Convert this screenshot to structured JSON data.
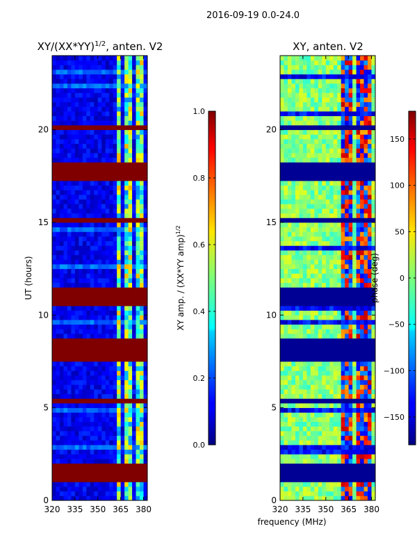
{
  "figure_title": "2016-09-19 0.0-24.0",
  "chart_data": [
    {
      "type": "heatmap",
      "title": "XY/(XX*YY)",
      "title_exponent": "1/2",
      "title_suffix": ", anten. V2",
      "xlabel": "",
      "ylabel": "UT (hours)",
      "xlim": [
        320,
        382.5
      ],
      "ylim": [
        0,
        24
      ],
      "x_ticks": [
        320,
        335,
        350,
        365,
        380
      ],
      "y_ticks": [
        0,
        5,
        10,
        15,
        20
      ],
      "colormap": "jet",
      "colorbar": {
        "label": "XY amp. / (XX*YY amp)",
        "label_exponent": "1/2",
        "range": [
          0.0,
          1.0
        ],
        "ticks": [
          0.0,
          0.2,
          0.4,
          0.6,
          0.8,
          1.0
        ],
        "tick_labels": [
          "0.0",
          "0.2",
          "0.4",
          "0.6",
          "0.8",
          "1.0"
        ]
      },
      "flagged_value": 1.0,
      "flagged_time_ranges": [
        [
          0.0,
          0.1
        ],
        [
          1.0,
          2.0
        ],
        [
          5.2,
          5.5
        ],
        [
          7.6,
          8.8
        ],
        [
          10.6,
          11.6
        ],
        [
          14.9,
          15.3
        ],
        [
          17.3,
          18.3
        ],
        [
          20.1,
          20.3
        ]
      ],
      "background_value": 0.05,
      "bright_channel_ranges_mhz": [
        [
          363,
          366
        ],
        [
          367,
          370
        ],
        [
          371,
          373
        ],
        [
          374,
          377
        ],
        [
          378,
          381
        ]
      ]
    },
    {
      "type": "heatmap",
      "title": "XY, anten. V2",
      "xlabel": "frequency (MHz)",
      "ylabel": "",
      "xlim": [
        320,
        382.5
      ],
      "ylim": [
        0,
        24
      ],
      "x_ticks": [
        320,
        335,
        350,
        365,
        380
      ],
      "y_ticks": [
        0,
        5,
        10,
        15,
        20
      ],
      "colormap": "jet",
      "colorbar": {
        "label": "phase (deg)",
        "range": [
          -180,
          180
        ],
        "ticks": [
          -150,
          -100,
          -50,
          0,
          50,
          100,
          150
        ],
        "tick_labels": [
          "−150",
          "−100",
          "−50",
          "0",
          "50",
          "100",
          "150"
        ]
      },
      "flagged_value": -180,
      "flagged_time_ranges": [
        [
          0.0,
          0.1
        ],
        [
          1.0,
          2.0
        ],
        [
          5.2,
          5.5
        ],
        [
          7.6,
          8.8
        ],
        [
          10.6,
          11.6
        ],
        [
          14.9,
          15.3
        ],
        [
          17.3,
          18.3
        ],
        [
          20.1,
          20.3
        ]
      ],
      "background_value_deg": -10,
      "disturbed_channel_ranges_mhz": [
        [
          360,
          368
        ],
        [
          370,
          380
        ]
      ]
    }
  ]
}
